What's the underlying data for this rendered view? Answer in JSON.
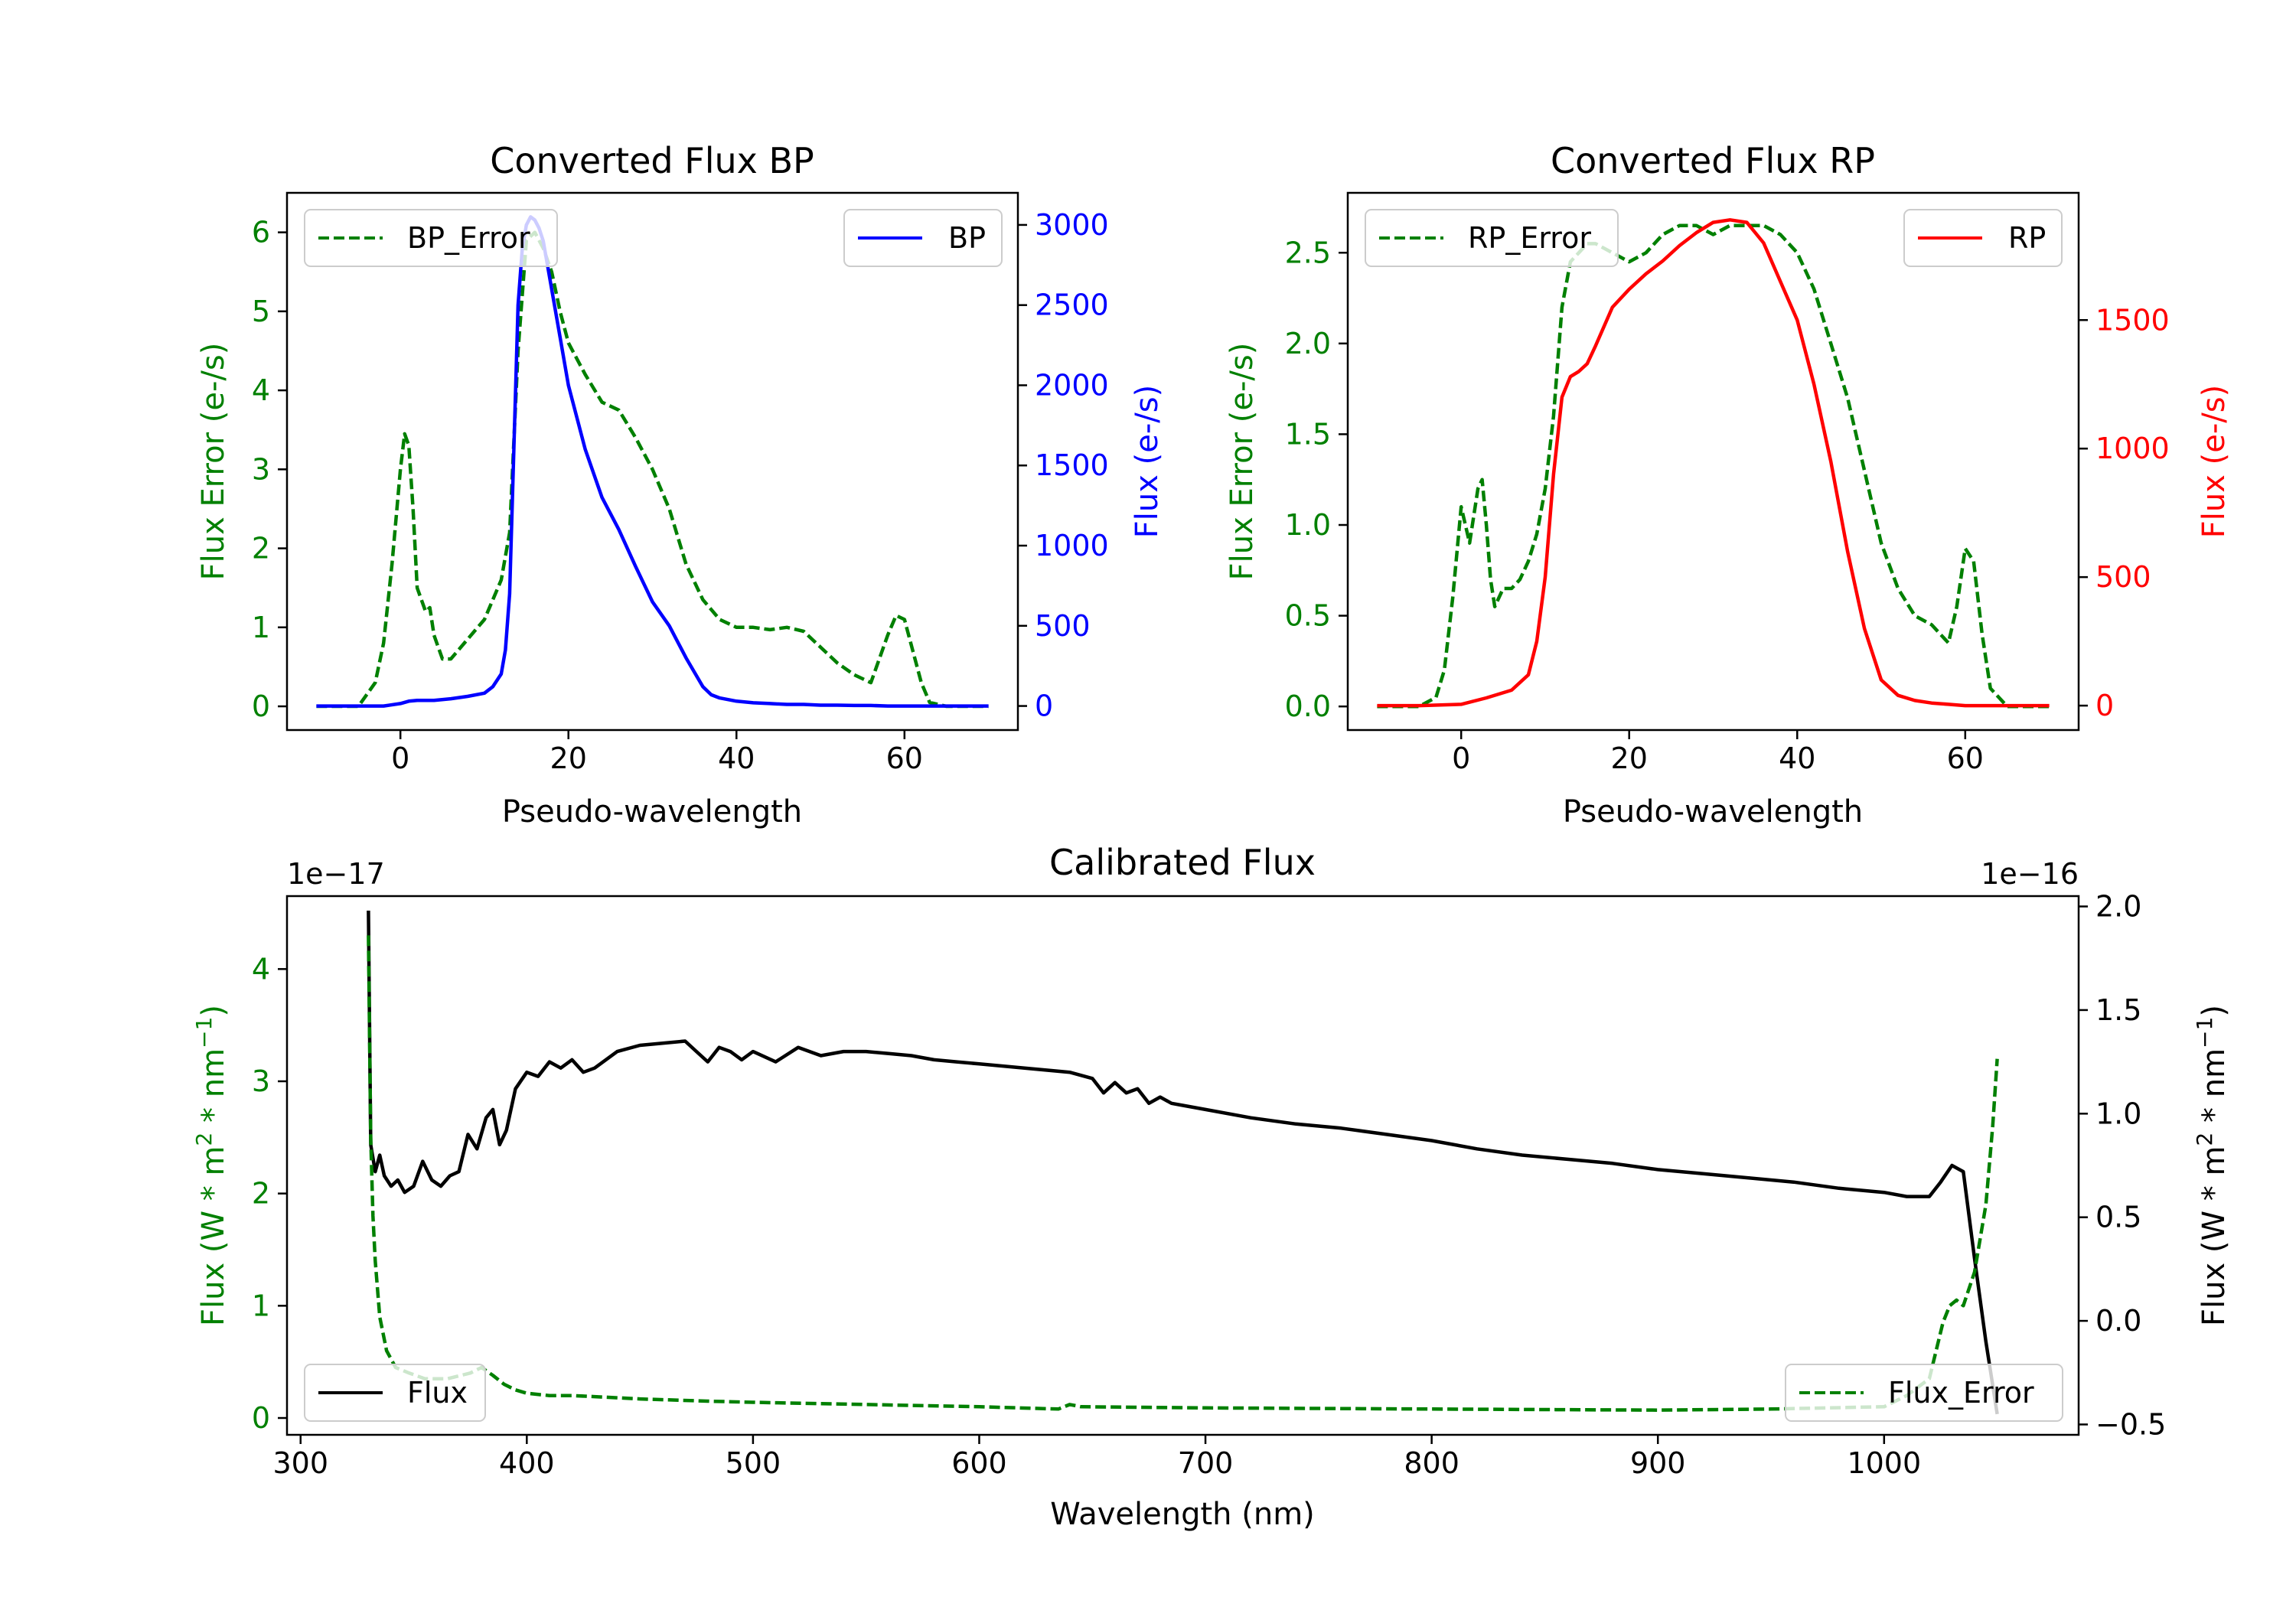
{
  "colors": {
    "error": "#008000",
    "bp": "#0000ff",
    "rp": "#ff0000",
    "flux": "#000000",
    "axis": "#000000"
  },
  "chart_data": [
    {
      "id": "bp",
      "type": "line",
      "title": "Converted Flux BP",
      "xlabel": "Pseudo-wavelength",
      "ylabel_left": "Flux Error (e-/s)",
      "ylabel_right": "Flux (e-/s)",
      "xlim": [
        -13.5,
        73.5
      ],
      "ylim_left": [
        -0.3,
        6.5
      ],
      "ylim_right": [
        -150,
        3200
      ],
      "xticks": [
        0,
        20,
        40,
        60
      ],
      "yticks_left": [
        0,
        1,
        2,
        3,
        4,
        5,
        6
      ],
      "yticks_right": [
        0,
        500,
        1000,
        1500,
        2000,
        2500,
        3000
      ],
      "legend_left": {
        "label": "BP_Error",
        "placement": "upper left"
      },
      "legend_right": {
        "label": "BP",
        "placement": "upper right"
      },
      "series": [
        {
          "name": "BP_Error",
          "axis": "left",
          "style": "dashed",
          "color_key": "error",
          "x": [
            -10,
            -5,
            -3,
            -2,
            -1,
            0,
            0.5,
            1,
            1.5,
            2,
            3,
            3.5,
            4,
            5,
            6,
            8,
            10,
            12,
            13,
            14,
            15,
            16,
            17,
            18,
            19,
            20,
            22,
            24,
            26,
            28,
            30,
            32,
            34,
            36,
            38,
            40,
            42,
            44,
            46,
            48,
            50,
            52,
            54,
            56,
            58,
            59,
            60,
            61,
            62,
            63,
            65,
            70
          ],
          "values": [
            0,
            0,
            0.3,
            0.8,
            1.8,
            3.0,
            3.45,
            3.3,
            2.5,
            1.5,
            1.2,
            1.25,
            0.9,
            0.6,
            0.6,
            0.85,
            1.1,
            1.6,
            2.2,
            4.5,
            5.9,
            6.0,
            5.8,
            5.5,
            5.0,
            4.6,
            4.2,
            3.85,
            3.75,
            3.4,
            3.0,
            2.5,
            1.8,
            1.35,
            1.1,
            1.0,
            1.0,
            0.97,
            1.0,
            0.95,
            0.75,
            0.55,
            0.4,
            0.3,
            0.9,
            1.15,
            1.1,
            0.7,
            0.3,
            0.05,
            0,
            0
          ]
        },
        {
          "name": "BP",
          "axis": "right",
          "style": "solid",
          "color_key": "bp",
          "x": [
            -10,
            -2,
            0,
            1,
            2,
            4,
            6,
            8,
            10,
            11,
            12,
            12.5,
            13,
            13.5,
            14,
            14.5,
            15,
            15.5,
            16,
            16.5,
            17,
            18,
            19,
            20,
            22,
            24,
            26,
            28,
            30,
            32,
            34,
            36,
            37,
            38,
            40,
            42,
            44,
            46,
            48,
            50,
            52,
            54,
            56,
            58,
            60,
            62,
            65,
            70
          ],
          "values": [
            0,
            0,
            15,
            30,
            35,
            35,
            45,
            60,
            80,
            120,
            200,
            350,
            700,
            1600,
            2500,
            2850,
            3000,
            3050,
            3030,
            2980,
            2900,
            2600,
            2300,
            2000,
            1600,
            1300,
            1100,
            870,
            650,
            500,
            300,
            120,
            70,
            50,
            30,
            20,
            15,
            10,
            10,
            5,
            5,
            3,
            3,
            0,
            0,
            0,
            0,
            0
          ]
        }
      ]
    },
    {
      "id": "rp",
      "type": "line",
      "title": "Converted Flux RP",
      "xlabel": "Pseudo-wavelength",
      "ylabel_left": "Flux Error (e-/s)",
      "ylabel_right": "Flux (e-/s)",
      "xlim": [
        -13.5,
        73.5
      ],
      "ylim_left": [
        -0.13,
        2.83
      ],
      "ylim_right": [
        -95,
        1995
      ],
      "xticks": [
        0,
        20,
        40,
        60
      ],
      "yticks_left": [
        0.0,
        0.5,
        1.0,
        1.5,
        2.0,
        2.5
      ],
      "yticks_right": [
        0,
        500,
        1000,
        1500
      ],
      "legend_left": {
        "label": "RP_Error",
        "placement": "upper left"
      },
      "legend_right": {
        "label": "RP",
        "placement": "upper right"
      },
      "series": [
        {
          "name": "RP_Error",
          "axis": "left",
          "style": "dashed",
          "color_key": "error",
          "x": [
            -10,
            -5,
            -3,
            -2,
            -1,
            0,
            0.5,
            1,
            2,
            2.5,
            3,
            3.5,
            4,
            5,
            6,
            7,
            8,
            9,
            10,
            11,
            12,
            13,
            14,
            15,
            16,
            18,
            20,
            22,
            24,
            26,
            28,
            30,
            32,
            34,
            36,
            38,
            40,
            42,
            44,
            46,
            48,
            50,
            52,
            54,
            56,
            57,
            58,
            59,
            60,
            61,
            62,
            63,
            65,
            70
          ],
          "values": [
            0,
            0,
            0.05,
            0.2,
            0.6,
            1.1,
            1.0,
            0.9,
            1.2,
            1.25,
            1.0,
            0.7,
            0.55,
            0.65,
            0.65,
            0.7,
            0.8,
            0.95,
            1.2,
            1.6,
            2.2,
            2.45,
            2.5,
            2.55,
            2.55,
            2.5,
            2.45,
            2.5,
            2.6,
            2.65,
            2.65,
            2.6,
            2.65,
            2.65,
            2.65,
            2.6,
            2.5,
            2.3,
            2.0,
            1.7,
            1.3,
            0.9,
            0.65,
            0.5,
            0.45,
            0.4,
            0.35,
            0.55,
            0.87,
            0.8,
            0.4,
            0.1,
            0,
            0
          ]
        },
        {
          "name": "RP",
          "axis": "right",
          "style": "solid",
          "color_key": "rp",
          "x": [
            -10,
            -5,
            0,
            3,
            6,
            8,
            9,
            10,
            11,
            12,
            13,
            14,
            15,
            16,
            18,
            20,
            22,
            24,
            26,
            28,
            30,
            32,
            34,
            36,
            38,
            40,
            42,
            44,
            46,
            48,
            50,
            52,
            54,
            56,
            58,
            60,
            62,
            65,
            70
          ],
          "values": [
            0,
            0,
            5,
            30,
            60,
            120,
            250,
            500,
            900,
            1200,
            1280,
            1300,
            1330,
            1400,
            1550,
            1620,
            1680,
            1730,
            1790,
            1840,
            1880,
            1890,
            1880,
            1800,
            1650,
            1500,
            1250,
            950,
            600,
            300,
            100,
            40,
            20,
            10,
            5,
            0,
            0,
            0,
            0
          ]
        }
      ]
    },
    {
      "id": "cal",
      "type": "line",
      "title": "Calibrated Flux",
      "xlabel": "Wavelength (nm)",
      "ylabel_left_prefix": "Flux (W * m",
      "ylabel_left_mid": " * nm",
      "ylabel_left_suffix": ")",
      "ylabel_right_prefix": "Flux (W * m",
      "ylabel_right_mid": " * nm",
      "ylabel_right_suffix": ")",
      "ylabel_sup1": "2",
      "ylabel_sup2": "−1",
      "offset_left": "1e−17",
      "offset_right": "1e−16",
      "xlim": [
        294,
        1086
      ],
      "ylim_left": [
        -0.15,
        4.65
      ],
      "ylim_right": [
        -0.55,
        2.05
      ],
      "xticks": [
        300,
        400,
        500,
        600,
        700,
        800,
        900,
        1000
      ],
      "yticks_left": [
        0,
        1,
        2,
        3,
        4
      ],
      "yticks_right_values": [
        -0.5,
        0.0,
        0.5,
        1.0,
        1.5,
        2.0
      ],
      "yticks_right_labels": [
        "−0.5",
        "0.0",
        "0.5",
        "1.0",
        "1.5",
        "2.0"
      ],
      "legend_left": {
        "label": "Flux",
        "placement": "lower left"
      },
      "legend_right": {
        "label": "Flux_Error",
        "placement": "lower right"
      },
      "series": [
        {
          "name": "Flux",
          "axis": "right",
          "style": "solid",
          "color_key": "flux",
          "x": [
            330,
            331,
            333,
            335,
            337,
            340,
            343,
            346,
            350,
            354,
            358,
            362,
            366,
            370,
            374,
            378,
            382,
            385,
            388,
            391,
            395,
            400,
            405,
            410,
            415,
            420,
            425,
            430,
            440,
            450,
            460,
            470,
            475,
            480,
            485,
            490,
            495,
            500,
            510,
            520,
            530,
            540,
            550,
            560,
            570,
            580,
            590,
            600,
            620,
            640,
            650,
            655,
            660,
            665,
            670,
            675,
            680,
            685,
            690,
            700,
            720,
            740,
            760,
            780,
            800,
            820,
            840,
            860,
            880,
            900,
            920,
            940,
            960,
            980,
            1000,
            1010,
            1020,
            1025,
            1030,
            1035,
            1040,
            1045,
            1050
          ],
          "values": [
            1.98,
            0.85,
            0.72,
            0.8,
            0.7,
            0.65,
            0.68,
            0.62,
            0.65,
            0.77,
            0.68,
            0.65,
            0.7,
            0.72,
            0.9,
            0.83,
            0.98,
            1.02,
            0.85,
            0.92,
            1.12,
            1.2,
            1.18,
            1.25,
            1.22,
            1.26,
            1.2,
            1.22,
            1.3,
            1.33,
            1.34,
            1.35,
            1.3,
            1.25,
            1.32,
            1.3,
            1.26,
            1.3,
            1.25,
            1.32,
            1.28,
            1.3,
            1.3,
            1.29,
            1.28,
            1.26,
            1.25,
            1.24,
            1.22,
            1.2,
            1.17,
            1.1,
            1.15,
            1.1,
            1.12,
            1.05,
            1.08,
            1.05,
            1.04,
            1.02,
            0.98,
            0.95,
            0.93,
            0.9,
            0.87,
            0.83,
            0.8,
            0.78,
            0.76,
            0.73,
            0.71,
            0.69,
            0.67,
            0.64,
            0.62,
            0.6,
            0.6,
            0.67,
            0.75,
            0.72,
            0.3,
            -0.1,
            -0.45
          ]
        },
        {
          "name": "Flux_Error",
          "axis": "left",
          "style": "dashed",
          "color_key": "error",
          "x": [
            330,
            331,
            332,
            333,
            335,
            338,
            342,
            348,
            355,
            365,
            375,
            380,
            385,
            390,
            395,
            400,
            410,
            420,
            430,
            440,
            450,
            480,
            500,
            550,
            600,
            635,
            640,
            645,
            700,
            800,
            900,
            950,
            1000,
            1010,
            1020,
            1023,
            1026,
            1029,
            1032,
            1035,
            1040,
            1045,
            1048,
            1050
          ],
          "values": [
            4.3,
            2.5,
            1.8,
            1.4,
            0.9,
            0.6,
            0.45,
            0.4,
            0.35,
            0.35,
            0.4,
            0.45,
            0.38,
            0.3,
            0.25,
            0.22,
            0.2,
            0.2,
            0.19,
            0.18,
            0.17,
            0.15,
            0.14,
            0.12,
            0.1,
            0.08,
            0.12,
            0.1,
            0.09,
            0.08,
            0.07,
            0.08,
            0.1,
            0.2,
            0.35,
            0.6,
            0.85,
            1.0,
            1.05,
            1.0,
            1.3,
            1.9,
            2.6,
            3.2
          ]
        }
      ]
    }
  ]
}
